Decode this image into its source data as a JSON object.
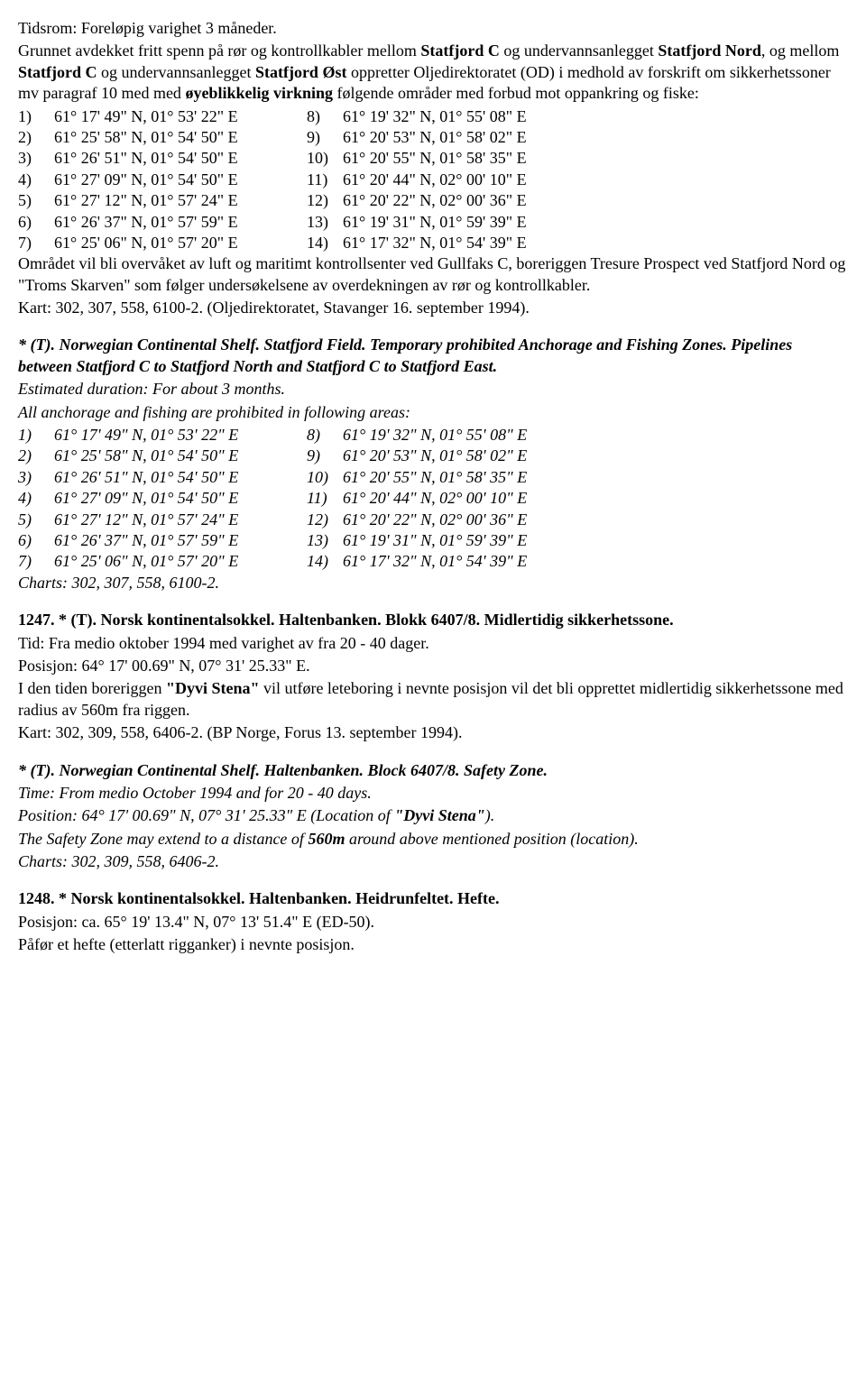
{
  "para1": {
    "tidsrom": "Tidsrom: Foreløpig varighet 3 måneder.",
    "grunnet": "Grunnet avdekket fritt spenn på rør og kontrollkabler mellom ",
    "statfjordC": "Statfjord C",
    "og1": " og undervannsanlegget ",
    "statfjordNord": "Statfjord Nord",
    "og2": ", og mellom ",
    "statfjordC2": "Statfjord C",
    "og3": " og undervannsanlegget ",
    "statfjordOst": "Statfjord Øst",
    "oppretter": " oppretter Oljedirektoratet (OD) i medhold av forskrift om sikkerhetssoner mv paragraf 10 med med ",
    "oyeblikkelig": "øyeblikkelig virkning",
    "folgende": " følgende områder med forbud mot oppankring og fiske:"
  },
  "coords_no": [
    {
      "n1": "1)",
      "c1": "61° 17' 49\" N, 01° 53' 22\" E",
      "n2": "8)",
      "c2": "61° 19' 32\" N, 01° 55' 08\" E"
    },
    {
      "n1": "2)",
      "c1": "61° 25' 58\" N, 01° 54' 50\" E",
      "n2": "9)",
      "c2": "61° 20' 53\" N, 01° 58' 02\" E"
    },
    {
      "n1": "3)",
      "c1": "61° 26' 51\" N, 01° 54' 50\" E",
      "n2": "10)",
      "c2": "61° 20' 55\" N, 01° 58' 35\" E"
    },
    {
      "n1": "4)",
      "c1": "61° 27' 09\" N, 01° 54' 50\" E",
      "n2": "11)",
      "c2": "61° 20' 44\" N, 02° 00' 10\" E"
    },
    {
      "n1": "5)",
      "c1": "61° 27' 12\" N, 01° 57' 24\" E",
      "n2": "12)",
      "c2": "61° 20' 22\" N, 02° 00' 36\" E"
    },
    {
      "n1": "6)",
      "c1": "61° 26' 37\" N, 01° 57' 59\" E",
      "n2": "13)",
      "c2": "61° 19' 31\" N, 01° 59' 39\" E"
    },
    {
      "n1": "7)",
      "c1": "61° 25' 06\" N, 01° 57' 20\" E",
      "n2": "14)",
      "c2": "61° 17' 32\" N, 01° 54' 39\" E"
    }
  ],
  "omradet": "Området vil bli overvåket av luft og maritimt kontrollsenter ved Gullfaks C, boreriggen Tresure Prospect ved Statfjord Nord og \"Troms Skarven\" som følger undersøkelsene av overdekningen av rør og kontrollkabler.",
  "kart1": "Kart: 302, 307, 558, 6100-2. (Oljedirektoratet, Stavanger 16. september 1994).",
  "en_section": {
    "title": "* (T). Norwegian Continental Shelf. Statfjord Field. Temporary prohibited Anchorage and Fishing Zones. Pipelines between Statfjord C to Statfjord North and Statfjord C to Statfjord East.",
    "estimated": "Estimated duration: For about 3 months.",
    "prohibited": "All anchorage and fishing are prohibited in following areas:"
  },
  "coords_en": [
    {
      "n1": "1)",
      "c1": "61° 17' 49\" N, 01° 53' 22\" E",
      "n2": "8)",
      "c2": "61° 19' 32\" N, 01° 55' 08\" E"
    },
    {
      "n1": "2)",
      "c1": "61° 25' 58\" N, 01° 54' 50\" E",
      "n2": "9)",
      "c2": "61° 20' 53\" N, 01° 58' 02\" E"
    },
    {
      "n1": "3)",
      "c1": "61° 26' 51\" N, 01° 54' 50\" E",
      "n2": "10)",
      "c2": "61° 20' 55\" N, 01° 58' 35\" E"
    },
    {
      "n1": "4)",
      "c1": "61° 27' 09\" N, 01° 54' 50\" E",
      "n2": "11)",
      "c2": "61° 20' 44\" N, 02° 00' 10\" E"
    },
    {
      "n1": "5)",
      "c1": "61° 27' 12\" N, 01° 57' 24\" E",
      "n2": "12)",
      "c2": "61° 20' 22\" N, 02° 00' 36\" E"
    },
    {
      "n1": "6)",
      "c1": "61° 26' 37\" N, 01° 57' 59\" E",
      "n2": "13)",
      "c2": "61° 19' 31\" N, 01° 59' 39\" E"
    },
    {
      "n1": "7)",
      "c1": "61° 25' 06\" N, 01° 57' 20\" E",
      "n2": "14)",
      "c2": "61° 17' 32\" N, 01° 54' 39\" E"
    }
  ],
  "charts_en": "Charts: 302, 307, 558, 6100-2.",
  "notice1247": {
    "title": "1247. * (T). Norsk kontinentalsokkel. Haltenbanken. Blokk 6407/8. Midlertidig sikkerhetssone.",
    "tid": "Tid: Fra medio oktober 1994 med varighet av fra 20 - 40 dager.",
    "posisjon": "Posisjon: 64° 17' 00.69\" N, 07° 31' 25.33\" E.",
    "iden1": "I den tiden boreriggen ",
    "dyvi": "\"Dyvi Stena\"",
    "iden2": " vil utføre leteboring i nevnte posisjon vil det bli opprettet midlertidig sikkerhetssone med radius av 560m fra riggen.",
    "kart": "Kart: 302, 309, 558, 6406-2. (BP Norge, Forus 13. september 1994)."
  },
  "notice1247en": {
    "title": "* (T). Norwegian Continental Shelf. Haltenbanken. Block 6407/8. Safety Zone.",
    "time": "Time: From medio October 1994 and for 20 - 40 days.",
    "pos1": "Position: 64° 17' 00.69\" N, 07° 31' 25.33\" E (Location of ",
    "dyvi": "\"Dyvi Stena\"",
    "pos2": ").",
    "safety1": "The Safety Zone may extend to a distance of ",
    "m560": "560m",
    "safety2": " around above mentioned position (location).",
    "charts": "Charts: 302, 309, 558, 6406-2."
  },
  "notice1248": {
    "title": "1248. * Norsk kontinentalsokkel. Haltenbanken. Heidrunfeltet. Hefte.",
    "posisjon": "Posisjon: ca. 65° 19' 13.4\" N, 07° 13' 51.4\" E (ED-50).",
    "pafor": "Påfør et hefte (etterlatt rigganker) i nevnte posisjon."
  }
}
